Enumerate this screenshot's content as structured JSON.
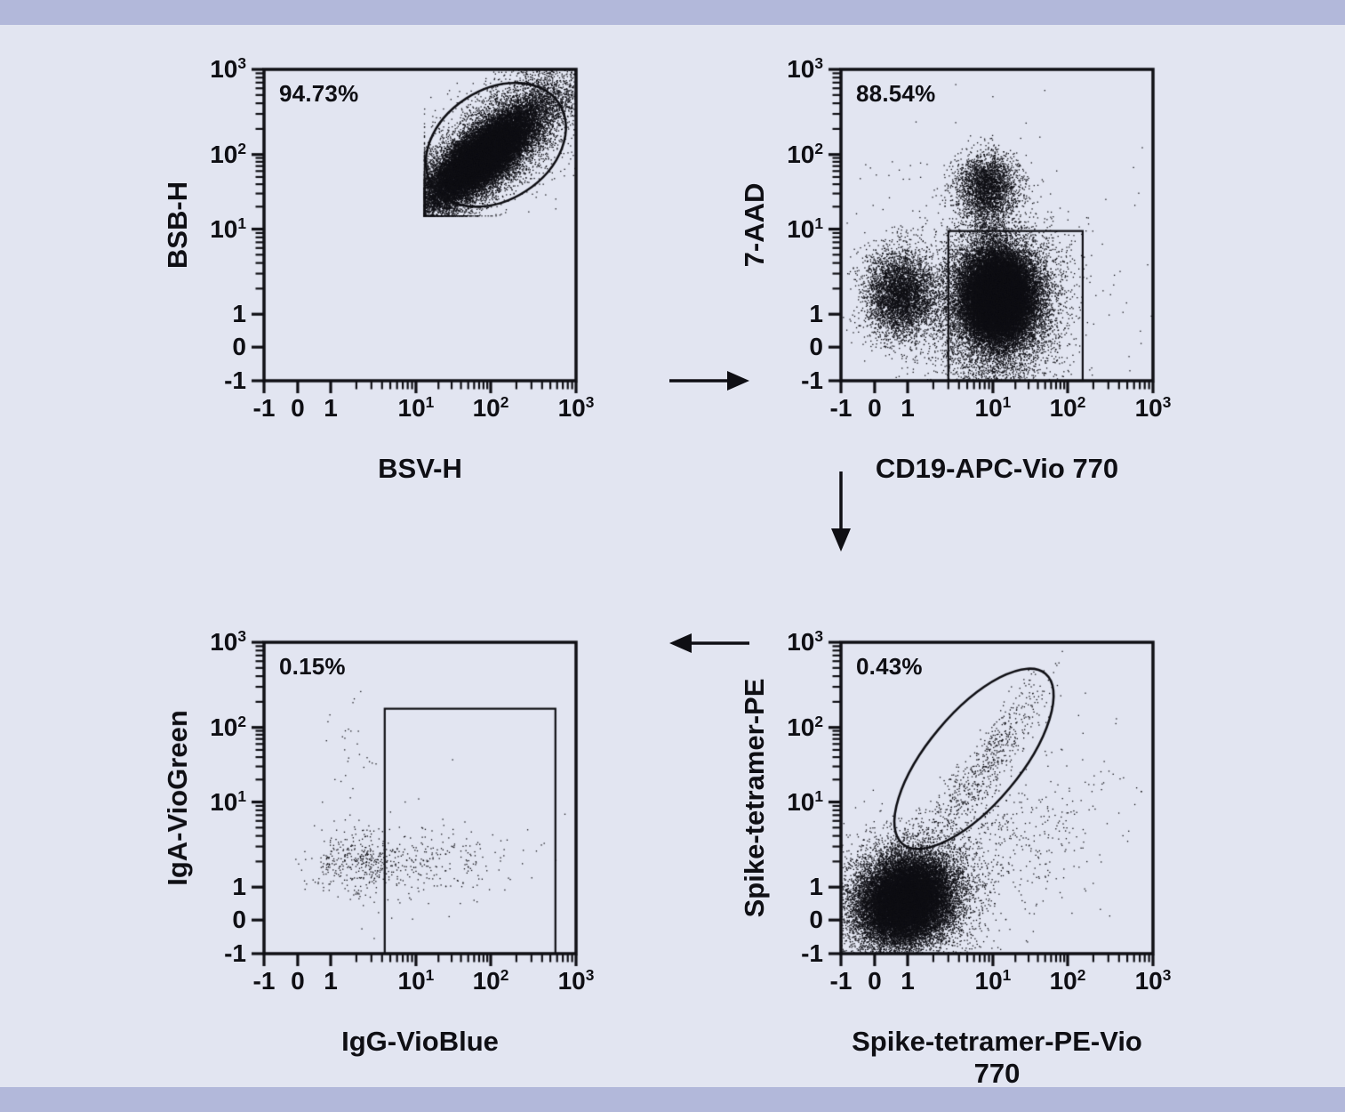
{
  "page": {
    "background_color": "#e2e5f1",
    "band_color": "#b2b8da",
    "ink_color": "#0f0f14",
    "figure_type": "flow-cytometry-gating-strategy"
  },
  "axis": {
    "scale": "biexponential",
    "anchor_values": [
      -1,
      0,
      1,
      10,
      100,
      1000
    ],
    "anchor_fractions": [
      0,
      0.108,
      0.2137,
      0.487,
      0.7265,
      1.0
    ],
    "major_ticks": [
      {
        "value": -1,
        "label": "-1"
      },
      {
        "value": 0,
        "label": "0"
      },
      {
        "value": 1,
        "label": "1"
      },
      {
        "value": 10,
        "label": "10",
        "exp": "1"
      },
      {
        "value": 100,
        "label": "10",
        "exp": "2"
      },
      {
        "value": 1000,
        "label": "10",
        "exp": "3"
      }
    ],
    "minor_tick_values": [
      2,
      3,
      4,
      5,
      6,
      7,
      8,
      9,
      20,
      30,
      40,
      50,
      60,
      70,
      80,
      90,
      200,
      300,
      400,
      500,
      600,
      700,
      800,
      900
    ]
  },
  "chart_data": [
    {
      "type": "scatter",
      "id": "scatter-gate",
      "xlabel": "BSV-H",
      "ylabel": "BSB-H",
      "percent_label": "94.73%",
      "xlim": [
        -1,
        1000
      ],
      "ylim": [
        -1,
        1000
      ],
      "grid": false,
      "gate": {
        "shape": "ellipse",
        "center_x": 115,
        "center_y": 130,
        "rx_frac": 0.242,
        "ry_frac": 0.177,
        "rot_deg": -33,
        "percent": "94.73%"
      },
      "populations": [
        {
          "name": "cells-core",
          "n": 24000,
          "cx": 75,
          "cy": 90,
          "sx": 0.085,
          "sy": 0.075,
          "rho": 0.78,
          "clip": {
            "xmin": 13,
            "ymin": 15,
            "xmax": 1000,
            "ymax": 1000
          },
          "pile": true
        },
        {
          "name": "cells-halo",
          "n": 6500,
          "cx": 80,
          "cy": 95,
          "sx": 0.135,
          "sy": 0.115,
          "rho": 0.72,
          "clip": {
            "xmin": 13,
            "ymin": 15,
            "xmax": 1000,
            "ymax": 1000
          },
          "pile": true
        },
        {
          "name": "corner-spill",
          "n": 1400,
          "cx": 380,
          "cy": 430,
          "sx": 0.1,
          "sy": 0.09,
          "rho": 0.5,
          "clip": {
            "xmin": 13,
            "ymin": 15,
            "xmax": 1000,
            "ymax": 1000
          },
          "pile": true
        },
        {
          "name": "stray",
          "n": 260,
          "cx": 55,
          "cy": 60,
          "sx": 0.23,
          "sy": 0.2,
          "rho": 0.2,
          "clip": {
            "xmin": 13,
            "ymin": 15,
            "xmax": 1000,
            "ymax": 1000
          },
          "pile": false
        }
      ]
    },
    {
      "type": "scatter",
      "id": "viability-cd19-gate",
      "xlabel": "CD19-APC-Vio 770",
      "ylabel": "7-AAD",
      "percent_label": "88.54%",
      "xlim": [
        -1,
        1000
      ],
      "ylim": [
        -1,
        1000
      ],
      "grid": false,
      "gate": {
        "shape": "rect",
        "x1": 3,
        "x2": 150,
        "y1": -1,
        "y2": 9.5,
        "percent": "88.54%"
      },
      "populations": [
        {
          "name": "cd19neg-live",
          "n": 4800,
          "cx": 0.8,
          "cy": 1.7,
          "sx": 0.056,
          "sy": 0.068,
          "rho": 0,
          "pile": true
        },
        {
          "name": "cd19pos-live-core",
          "n": 26000,
          "cx": 12,
          "cy": 1.6,
          "sx": 0.058,
          "sy": 0.07,
          "rho": 0,
          "pile": true
        },
        {
          "name": "cd19pos-live-halo",
          "n": 7500,
          "cx": 11,
          "cy": 1.2,
          "sx": 0.1,
          "sy": 0.135,
          "rho": 0,
          "pile": true
        },
        {
          "name": "dead-7aad-pos",
          "n": 2700,
          "cx": 8.5,
          "cy": 38,
          "sx": 0.048,
          "sy": 0.052,
          "rho": 0,
          "pile": false
        },
        {
          "name": "bridge",
          "n": 750,
          "cx": 8.5,
          "cy": 11,
          "sx": 0.034,
          "sy": 0.1,
          "rho": 0,
          "pile": false
        },
        {
          "name": "background",
          "n": 420,
          "cx": 4,
          "cy": 2.5,
          "sx": 0.26,
          "sy": 0.22,
          "rho": 0,
          "pile": false
        }
      ]
    },
    {
      "type": "scatter",
      "id": "spike-tetramer-gate",
      "xlabel": "Spike-tetramer-PE-Vio 770",
      "ylabel": "Spike-tetramer-PE",
      "percent_label": "0.43%",
      "xlim": [
        -1,
        1000
      ],
      "ylim": [
        -1,
        1000
      ],
      "grid": false,
      "gate": {
        "shape": "ellipse",
        "center_x": 6,
        "center_y": 38,
        "rx_frac": 0.356,
        "ry_frac": 0.148,
        "rot_deg": -50,
        "percent": "0.43%"
      },
      "populations": [
        {
          "name": "tetramer-neg-core",
          "n": 22000,
          "cx": 0.95,
          "cy": 0.6,
          "sx": 0.072,
          "sy": 0.068,
          "rho": 0.15,
          "pile": true
        },
        {
          "name": "tetramer-neg-halo",
          "n": 4200,
          "cx": 0.95,
          "cy": 0.6,
          "sx": 0.115,
          "sy": 0.105,
          "rho": 0.1,
          "pile": true
        },
        {
          "name": "tetramer-double-pos",
          "n": 640,
          "cx": 8,
          "cy": 30,
          "sx": 0.105,
          "sy": 0.145,
          "rho": 0.92,
          "pile": false
        },
        {
          "name": "pe-vio770-single",
          "n": 380,
          "cx": 25,
          "cy": 4,
          "sx": 0.16,
          "sy": 0.15,
          "rho": 0.25,
          "pile": false
        },
        {
          "name": "transition",
          "n": 160,
          "cx": 3,
          "cy": 2,
          "sx": 0.1,
          "sy": 0.1,
          "rho": 0.3,
          "pile": false
        }
      ]
    },
    {
      "type": "scatter",
      "id": "igg-iga-gate",
      "xlabel": "IgG-VioBlue",
      "ylabel": "IgA-VioGreen",
      "percent_label": "0.15%",
      "xlim": [
        -1,
        1000
      ],
      "ylim": [
        -1,
        1000
      ],
      "grid": false,
      "gate": {
        "shape": "rect",
        "x1": 4.3,
        "x2": 573,
        "y1": -1,
        "y2": 166,
        "percent": "0.15%"
      },
      "populations": [
        {
          "name": "igg-low-band",
          "n": 330,
          "cx": 2,
          "cy": 2,
          "sx": 0.07,
          "sy": 0.05,
          "rho": 0,
          "pile": false
        },
        {
          "name": "igg-pos-band",
          "n": 250,
          "cx": 13,
          "cy": 2,
          "sx": 0.14,
          "sy": 0.055,
          "rho": 0,
          "pile": false
        },
        {
          "name": "iga-high",
          "n": 28,
          "cx": 1.8,
          "cy": 38,
          "sx": 0.04,
          "sy": 0.115,
          "rho": 0,
          "pile": false
        },
        {
          "name": "sparse",
          "n": 45,
          "cx": 7,
          "cy": 1.5,
          "sx": 0.23,
          "sy": 0.14,
          "rho": 0,
          "pile": false
        }
      ]
    }
  ],
  "workflow_arrows": [
    {
      "direction": "right",
      "from": "scatter-gate",
      "to": "viability-cd19-gate"
    },
    {
      "direction": "down",
      "from": "viability-cd19-gate",
      "to": "spike-tetramer-gate"
    },
    {
      "direction": "left",
      "from": "spike-tetramer-gate",
      "to": "igg-iga-gate"
    }
  ]
}
